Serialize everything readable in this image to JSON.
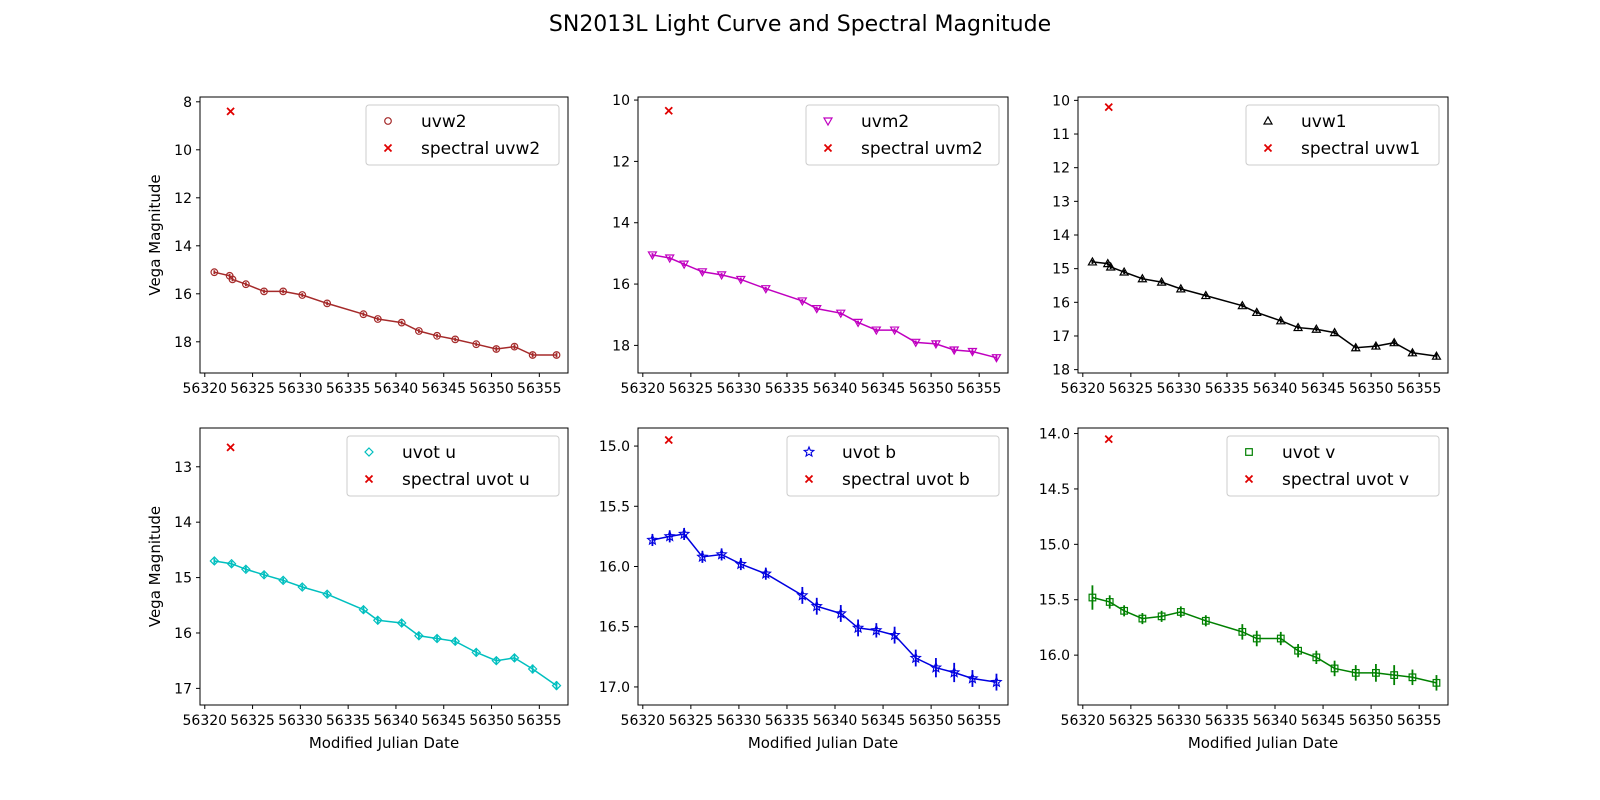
{
  "figure": {
    "title": "SN2013L Light Curve and Spectral Magnitude"
  },
  "chart_data": [
    {
      "type": "line",
      "title": "",
      "xlabel": "",
      "ylabel": "Vega Magnitude",
      "xlim": [
        56319.5,
        56358
      ],
      "ylim": [
        19.3,
        7.8
      ],
      "y_inverted": true,
      "xticks": [
        56320,
        56325,
        56330,
        56335,
        56340,
        56345,
        56350,
        56355
      ],
      "yticks": [
        8,
        10,
        12,
        14,
        16,
        18
      ],
      "ytick_decimals": 0,
      "legend": "top-right",
      "series": [
        {
          "name": "uvw2",
          "color": "#a52a2a",
          "marker": "circle",
          "line": true,
          "x": [
            56321,
            56322.6,
            56322.9,
            56324.3,
            56326.2,
            56328.2,
            56330.2,
            56332.8,
            56336.6,
            56338.1,
            56340.6,
            56342.4,
            56344.3,
            56346.2,
            56348.4,
            56350.5,
            56352.4,
            56354.3,
            56356.8
          ],
          "y": [
            15.1,
            15.25,
            15.4,
            15.6,
            15.9,
            15.9,
            16.05,
            16.4,
            16.85,
            17.05,
            17.2,
            17.55,
            17.75,
            17.9,
            18.1,
            18.3,
            18.2,
            18.55,
            18.55
          ],
          "yerr": [
            0.08,
            0.08,
            0.08,
            0.08,
            0.08,
            0.08,
            0.08,
            0.08,
            0.08,
            0.08,
            0.08,
            0.08,
            0.08,
            0.08,
            0.08,
            0.1,
            0.1,
            0.1,
            0.1
          ]
        },
        {
          "name": "spectral uvw2",
          "color": "#e00000",
          "marker": "x",
          "line": false,
          "x": [
            56322.7
          ],
          "y": [
            8.4
          ]
        }
      ]
    },
    {
      "type": "line",
      "title": "",
      "xlabel": "",
      "ylabel": "",
      "xlim": [
        56319.5,
        56358
      ],
      "ylim": [
        18.9,
        9.9
      ],
      "y_inverted": true,
      "xticks": [
        56320,
        56325,
        56330,
        56335,
        56340,
        56345,
        56350,
        56355
      ],
      "yticks": [
        10,
        12,
        14,
        16,
        18
      ],
      "ytick_decimals": 0,
      "legend": "top-right",
      "series": [
        {
          "name": "uvm2",
          "color": "#c000c0",
          "marker": "triangle-down",
          "line": true,
          "x": [
            56321,
            56322.8,
            56324.3,
            56326.2,
            56328.2,
            56330.2,
            56332.8,
            56336.6,
            56338.1,
            56340.6,
            56342.4,
            56344.3,
            56346.2,
            56348.4,
            56350.5,
            56352.4,
            56354.3,
            56356.8
          ],
          "y": [
            15.05,
            15.15,
            15.35,
            15.6,
            15.7,
            15.85,
            16.15,
            16.55,
            16.8,
            16.95,
            17.25,
            17.5,
            17.5,
            17.9,
            17.95,
            18.15,
            18.2,
            18.4
          ],
          "yerr": [
            0.06,
            0.06,
            0.06,
            0.06,
            0.06,
            0.06,
            0.06,
            0.06,
            0.06,
            0.06,
            0.06,
            0.06,
            0.06,
            0.06,
            0.08,
            0.08,
            0.08,
            0.1
          ]
        },
        {
          "name": "spectral uvm2",
          "color": "#e00000",
          "marker": "x",
          "line": false,
          "x": [
            56322.7
          ],
          "y": [
            10.35
          ]
        }
      ]
    },
    {
      "type": "line",
      "title": "",
      "xlabel": "",
      "ylabel": "",
      "xlim": [
        56319.5,
        56358
      ],
      "ylim": [
        18.1,
        9.9
      ],
      "y_inverted": true,
      "xticks": [
        56320,
        56325,
        56330,
        56335,
        56340,
        56345,
        56350,
        56355
      ],
      "yticks": [
        10,
        11,
        12,
        13,
        14,
        15,
        16,
        17,
        18
      ],
      "ytick_decimals": 0,
      "legend": "top-right",
      "series": [
        {
          "name": "uvw1",
          "color": "#000000",
          "marker": "triangle-up",
          "line": true,
          "x": [
            56321,
            56322.6,
            56322.9,
            56324.3,
            56326.2,
            56328.2,
            56330.2,
            56332.8,
            56336.6,
            56338.1,
            56340.6,
            56342.4,
            56344.3,
            56346.2,
            56348.4,
            56350.5,
            56352.4,
            56354.3,
            56356.8
          ],
          "y": [
            14.8,
            14.85,
            14.95,
            15.1,
            15.3,
            15.4,
            15.6,
            15.8,
            16.1,
            16.3,
            16.55,
            16.75,
            16.8,
            16.9,
            17.35,
            17.3,
            17.2,
            17.5,
            17.6
          ],
          "yerr": [
            0.06,
            0.06,
            0.06,
            0.06,
            0.06,
            0.06,
            0.06,
            0.06,
            0.06,
            0.06,
            0.06,
            0.06,
            0.06,
            0.06,
            0.08,
            0.08,
            0.08,
            0.08,
            0.1
          ]
        },
        {
          "name": "spectral uvw1",
          "color": "#e00000",
          "marker": "x",
          "line": false,
          "x": [
            56322.7
          ],
          "y": [
            10.2
          ]
        }
      ]
    },
    {
      "type": "line",
      "title": "",
      "xlabel": "Modified Julian Date",
      "ylabel": "Vega Magnitude",
      "xlim": [
        56319.5,
        56358
      ],
      "ylim": [
        17.3,
        12.3
      ],
      "y_inverted": true,
      "xticks": [
        56320,
        56325,
        56330,
        56335,
        56340,
        56345,
        56350,
        56355
      ],
      "yticks": [
        13,
        14,
        15,
        16,
        17
      ],
      "ytick_decimals": 0,
      "legend": "top-right",
      "series": [
        {
          "name": "uvot u",
          "color": "#00bfbf",
          "marker": "diamond",
          "line": true,
          "x": [
            56321,
            56322.8,
            56324.3,
            56326.2,
            56328.2,
            56330.2,
            56332.8,
            56336.6,
            56338.1,
            56340.6,
            56342.4,
            56344.3,
            56346.2,
            56348.4,
            56350.5,
            56352.4,
            56354.3,
            56356.8
          ],
          "y": [
            14.7,
            14.75,
            14.85,
            14.95,
            15.05,
            15.17,
            15.3,
            15.58,
            15.77,
            15.82,
            16.05,
            16.1,
            16.15,
            16.35,
            16.5,
            16.45,
            16.65,
            16.95
          ],
          "yerr": [
            0.05,
            0.05,
            0.05,
            0.05,
            0.05,
            0.05,
            0.05,
            0.06,
            0.06,
            0.06,
            0.06,
            0.06,
            0.06,
            0.06,
            0.06,
            0.07,
            0.08,
            0.08
          ]
        },
        {
          "name": "spectral uvot u",
          "color": "#e00000",
          "marker": "x",
          "line": false,
          "x": [
            56322.7
          ],
          "y": [
            12.65
          ]
        }
      ]
    },
    {
      "type": "line",
      "title": "",
      "xlabel": "Modified Julian Date",
      "ylabel": "",
      "xlim": [
        56319.5,
        56358
      ],
      "ylim": [
        17.15,
        14.85
      ],
      "y_inverted": true,
      "xticks": [
        56320,
        56325,
        56330,
        56335,
        56340,
        56345,
        56350,
        56355
      ],
      "yticks": [
        15.0,
        15.5,
        16.0,
        16.5,
        17.0
      ],
      "ytick_decimals": 1,
      "legend": "top-right",
      "series": [
        {
          "name": "uvot b",
          "color": "#0000e0",
          "marker": "star",
          "line": true,
          "x": [
            56321,
            56322.8,
            56324.3,
            56326.2,
            56328.2,
            56330.2,
            56332.8,
            56336.6,
            56338.1,
            56340.6,
            56342.4,
            56344.3,
            56346.2,
            56348.4,
            56350.5,
            56352.4,
            56354.3,
            56356.8
          ],
          "y": [
            15.78,
            15.75,
            15.73,
            15.92,
            15.9,
            15.98,
            16.06,
            16.24,
            16.33,
            16.39,
            16.51,
            16.53,
            16.57,
            16.76,
            16.84,
            16.88,
            16.93,
            16.96
          ],
          "yerr": [
            0.05,
            0.05,
            0.05,
            0.05,
            0.05,
            0.05,
            0.05,
            0.07,
            0.07,
            0.07,
            0.07,
            0.06,
            0.07,
            0.07,
            0.08,
            0.08,
            0.07,
            0.07
          ]
        },
        {
          "name": "spectral uvot b",
          "color": "#e00000",
          "marker": "x",
          "line": false,
          "x": [
            56322.7
          ],
          "y": [
            14.95
          ]
        }
      ]
    },
    {
      "type": "line",
      "title": "",
      "xlabel": "Modified Julian Date",
      "ylabel": "",
      "xlim": [
        56319.5,
        56358
      ],
      "ylim": [
        16.45,
        13.95
      ],
      "y_inverted": true,
      "xticks": [
        56320,
        56325,
        56330,
        56335,
        56340,
        56345,
        56350,
        56355
      ],
      "yticks": [
        14.0,
        14.5,
        15.0,
        15.5,
        16.0
      ],
      "ytick_decimals": 1,
      "legend": "top-right",
      "series": [
        {
          "name": "uvot v",
          "color": "#008000",
          "marker": "square",
          "line": true,
          "x": [
            56321,
            56322.8,
            56324.3,
            56326.2,
            56328.2,
            56330.2,
            56332.8,
            56336.6,
            56338.1,
            56340.6,
            56342.4,
            56344.3,
            56346.2,
            56348.4,
            56350.5,
            56352.4,
            56354.3,
            56356.8
          ],
          "y": [
            15.48,
            15.52,
            15.6,
            15.67,
            15.65,
            15.61,
            15.69,
            15.79,
            15.85,
            15.85,
            15.96,
            16.02,
            16.12,
            16.16,
            16.16,
            16.18,
            16.2,
            16.25
          ],
          "yerr": [
            0.11,
            0.06,
            0.05,
            0.05,
            0.05,
            0.05,
            0.05,
            0.07,
            0.07,
            0.06,
            0.06,
            0.06,
            0.07,
            0.07,
            0.08,
            0.09,
            0.07,
            0.07
          ]
        },
        {
          "name": "spectral uvot v",
          "color": "#e00000",
          "marker": "x",
          "line": false,
          "x": [
            56322.7
          ],
          "y": [
            14.05
          ]
        }
      ]
    }
  ]
}
